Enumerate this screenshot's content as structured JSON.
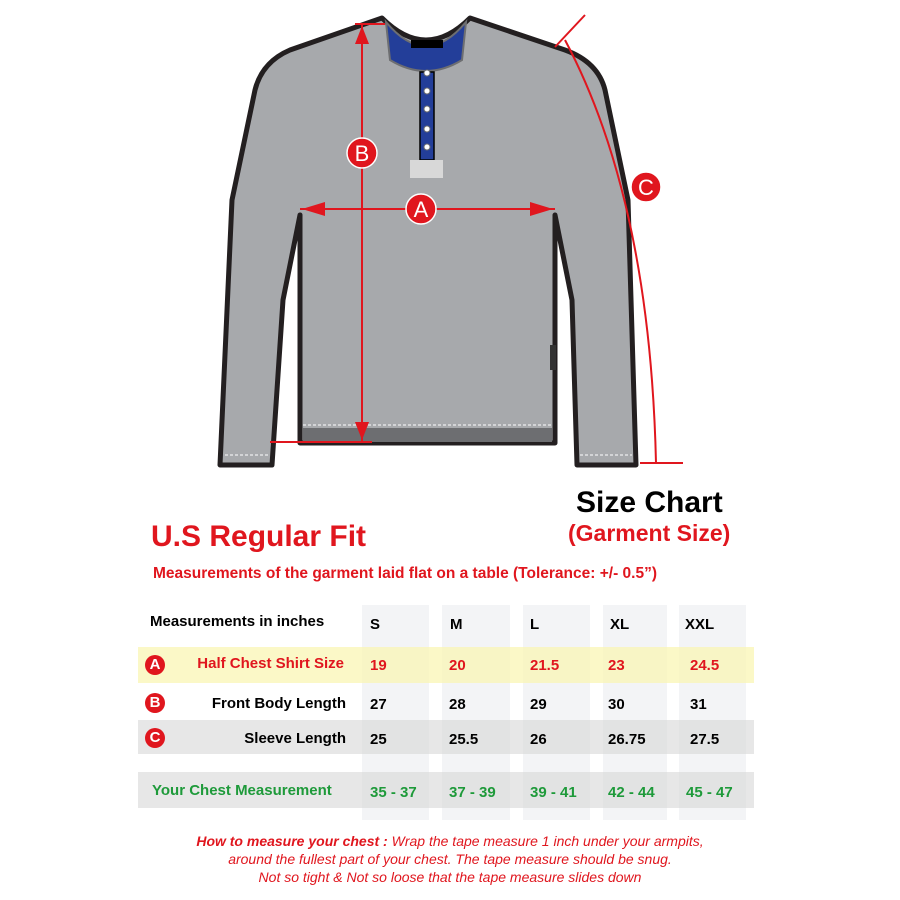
{
  "colors": {
    "accent_red": "#e0161e",
    "green": "#1e9a3a",
    "shirt_gray": "#a7a9ac",
    "placket_blue": "#233e99",
    "row_highlight": "#f9f6c4",
    "row_gray": "#e6e6e6"
  },
  "diagram": {
    "labels": [
      "A",
      "B",
      "C"
    ]
  },
  "title": "Size Chart",
  "subtitle": "(Garment Size)",
  "fit": "U.S Regular Fit",
  "measure_note": "Measurements of the garment laid flat  on a table  (Tolerance: +/- 0.5”)",
  "table": {
    "header": "Measurements in inches",
    "sizes": [
      "S",
      "M",
      "L",
      "XL",
      "XXL"
    ],
    "rows": [
      {
        "badge": "A",
        "label": "Half Chest Shirt Size",
        "values": [
          "19",
          "20",
          "21.5",
          "23",
          "24.5"
        ]
      },
      {
        "badge": "B",
        "label": "Front Body Length",
        "values": [
          "27",
          "28",
          "29",
          "30",
          "31"
        ]
      },
      {
        "badge": "C",
        "label": "Sleeve Length",
        "values": [
          "25",
          "25.5",
          "26",
          "26.75",
          "27.5"
        ]
      }
    ],
    "chest": {
      "label": "Your Chest Measurement",
      "values": [
        "35 - 37",
        "37 - 39",
        "39 - 41",
        "42 - 44",
        "45 - 47"
      ]
    }
  },
  "howto": {
    "lead": "How to measure your chest :",
    "line1": " Wrap the tape measure 1 inch under your armpits,",
    "line2": "around the fullest part of your chest. The tape measure should be snug.",
    "line3": "Not so tight & Not so loose that the tape measure slides down"
  }
}
